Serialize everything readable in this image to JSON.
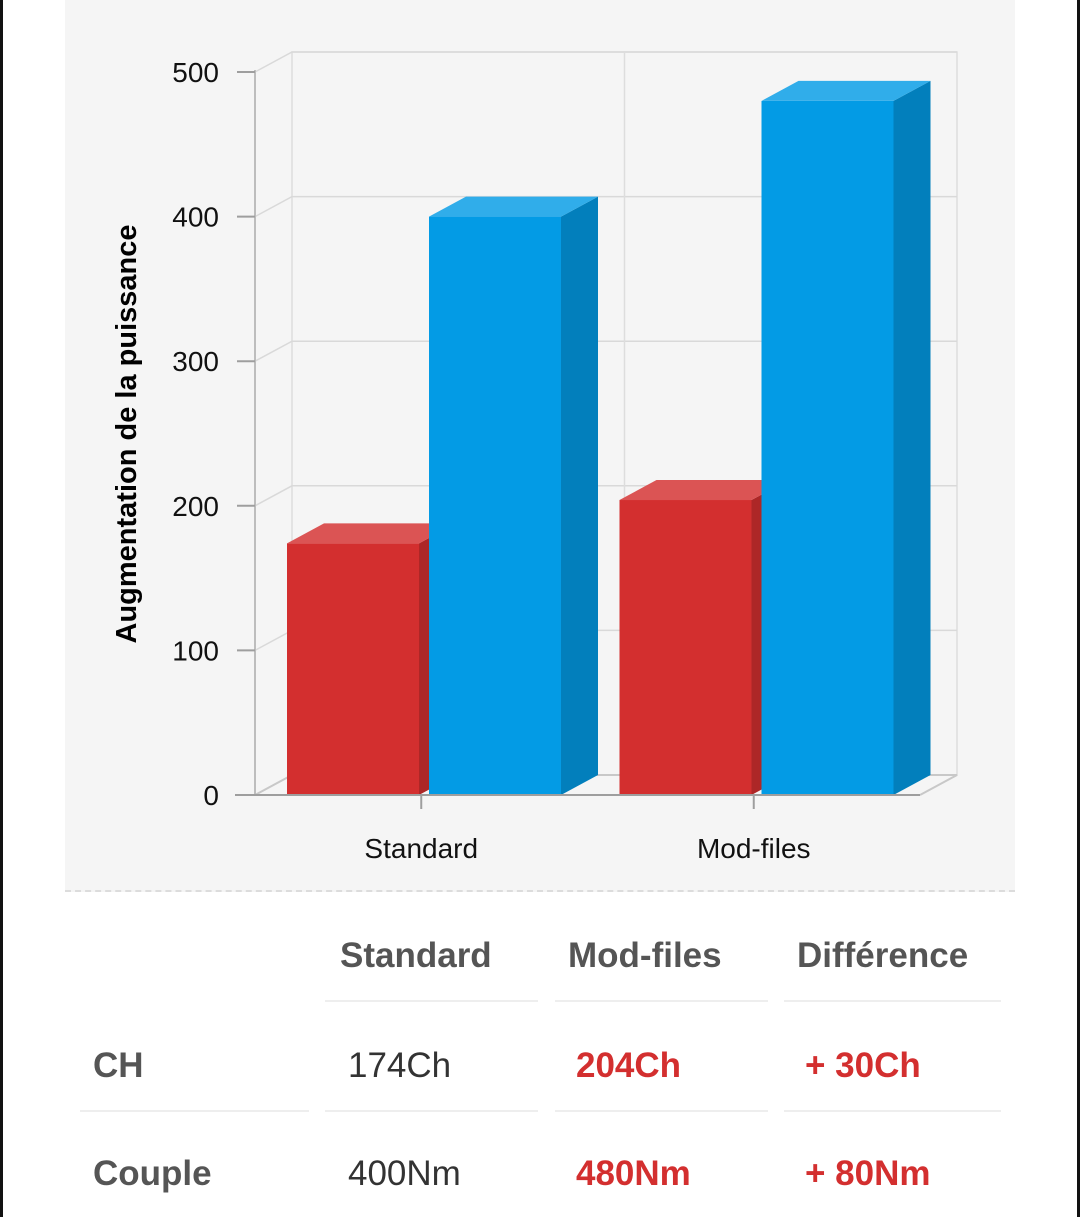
{
  "chart_data": {
    "type": "bar",
    "categories": [
      "Standard",
      "Mod-files"
    ],
    "series": [
      {
        "values": [
          174,
          204
        ],
        "color": "#d32f2f"
      },
      {
        "values": [
          400,
          480
        ],
        "color": "#039be5"
      }
    ],
    "xlabel": "",
    "ylabel": "Augmentation de la puissance",
    "ylim": [
      0,
      500
    ],
    "yticks": [
      0,
      100,
      200,
      300,
      400,
      500
    ],
    "grid": true,
    "style": "3d"
  },
  "table": {
    "headers": [
      "Standard",
      "Mod-files",
      "Différence"
    ],
    "rows": [
      {
        "label": "CH",
        "standard": "174Ch",
        "modfiles": "204Ch",
        "difference": "+ 30Ch"
      },
      {
        "label": "Couple",
        "standard": "400Nm",
        "modfiles": "480Nm",
        "difference": "+ 80Nm"
      }
    ]
  },
  "colors": {
    "accent": "#d32f2f",
    "series_red": "#d32f2f",
    "series_blue": "#039be5"
  }
}
